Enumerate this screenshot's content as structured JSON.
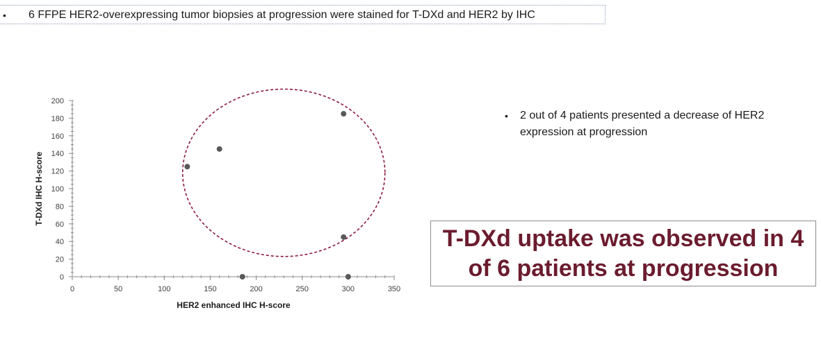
{
  "header": {
    "bullet": "•",
    "text": "6 FFPE HER2-overexpressing tumor biopsies at progression were stained for T-DXd and HER2 by IHC"
  },
  "side_note": {
    "bullet": "•",
    "text": "2 out of 4 patients presented a decrease of HER2 expression at progression"
  },
  "callout": {
    "text": "T-DXd uptake was observed in 4 of 6 patients at progression",
    "color": "#6b1c2e"
  },
  "chart_data": {
    "type": "scatter",
    "xlabel": "HER2 enhanced IHC H-score",
    "ylabel": "T-DXd IHC H-score",
    "xlim": [
      0,
      350
    ],
    "ylim": [
      0,
      200
    ],
    "x_ticks": [
      0,
      50,
      100,
      150,
      200,
      250,
      300,
      350
    ],
    "y_ticks": [
      0,
      20,
      40,
      60,
      80,
      100,
      120,
      140,
      160,
      180,
      200
    ],
    "points": [
      {
        "x": 125,
        "y": 125
      },
      {
        "x": 160,
        "y": 145
      },
      {
        "x": 295,
        "y": 185
      },
      {
        "x": 295,
        "y": 45
      },
      {
        "x": 185,
        "y": 0
      },
      {
        "x": 300,
        "y": 0
      }
    ],
    "grid": false,
    "point_color": "#595959",
    "annotation": {
      "shape": "dashed-ellipse",
      "center": [
        230,
        118
      ],
      "radius_x": 110,
      "radius_y": 95,
      "color": "#8b1a3a"
    }
  }
}
